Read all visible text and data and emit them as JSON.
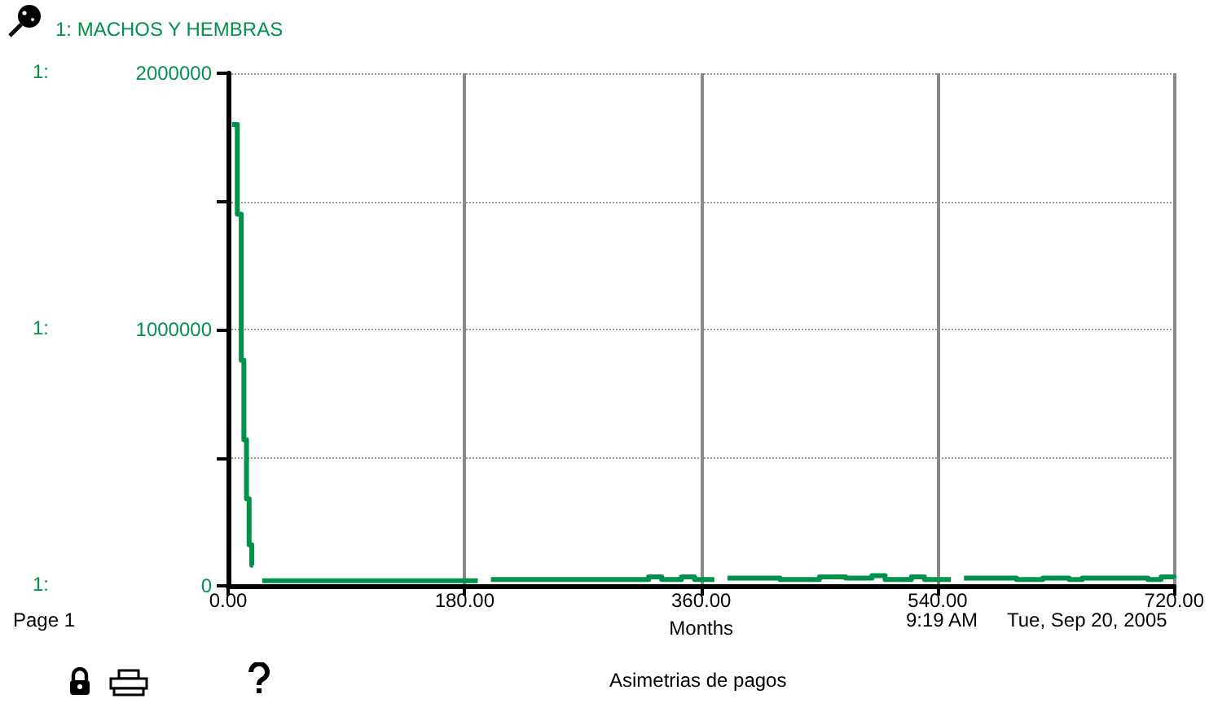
{
  "chart_data": {
    "type": "step",
    "xlabel": "Months",
    "annotations": [
      "Page 1",
      "9:19 AM",
      "Tue, Sep 20, 2005",
      "Asimetrias de pagos"
    ],
    "grid": true,
    "line_style": "solid",
    "marker": "none",
    "xlim": [
      0,
      720
    ],
    "xticks": [
      {
        "value": 0,
        "label": "0.00"
      },
      {
        "value": 180,
        "label": "180.00"
      },
      {
        "value": 360,
        "label": "360.00"
      },
      {
        "value": 540,
        "label": "540.00"
      },
      {
        "value": 720,
        "label": "720.00"
      }
    ],
    "ylabel": "1:",
    "ylim": [
      0,
      2000000
    ],
    "yticks": [
      0,
      {
        "value": 500000,
        "label": null
      },
      1000000,
      {
        "value": 1500000,
        "label": null
      },
      2000000
    ],
    "x": [
      3,
      7,
      10,
      12,
      14,
      16,
      18,
      19,
      26,
      100,
      180,
      190,
      200,
      300,
      320,
      330,
      345,
      355,
      370,
      380,
      420,
      450,
      470,
      490,
      500,
      520,
      530,
      550,
      560,
      600,
      620,
      640,
      650,
      700,
      710,
      720
    ],
    "series": [
      {
        "name": "1: MACHOS Y HEMBRAS",
        "color": "#00924a",
        "values": [
          1800000,
          1450000,
          880000,
          570000,
          340000,
          160000,
          80000,
          null,
          20000,
          20000,
          20000,
          null,
          25000,
          25000,
          35000,
          25000,
          35000,
          25000,
          null,
          30000,
          25000,
          35000,
          30000,
          40000,
          25000,
          35000,
          25000,
          null,
          30000,
          25000,
          30000,
          25000,
          30000,
          25000,
          35000,
          30000
        ]
      }
    ]
  }
}
